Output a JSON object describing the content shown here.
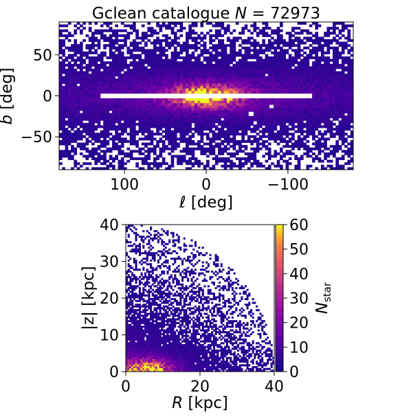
{
  "figure": {
    "title_prefix": "Gclean catalogue ",
    "title_n_symbol": "N",
    "title_n_value": " = 72973"
  },
  "chart_data": [
    {
      "type": "heatmap",
      "title": "Gclean catalogue N = 72973",
      "xlabel_symbol": "ℓ",
      "xlabel_unit": " [deg]",
      "ylabel_symbol": "b",
      "ylabel_unit": " [deg]",
      "xlim": [
        180,
        -180
      ],
      "ylim": [
        -90,
        90
      ],
      "x_reversed": true,
      "xticks": [
        100,
        0,
        -100
      ],
      "xtick_labels": [
        "100",
        "0",
        "−100"
      ],
      "yticks": [
        50,
        0,
        -50
      ],
      "ytick_labels": [
        "50",
        "0",
        "−50"
      ],
      "description": "2D histogram of star counts in Galactic longitude/latitude; dense bulge near l=0,b=0 with empty band along b≈0"
    },
    {
      "type": "heatmap",
      "xlabel_symbol": "R",
      "xlabel_unit": " [kpc]",
      "ylabel": "|z| [kpc]",
      "xlim": [
        0,
        40
      ],
      "ylim": [
        0,
        40
      ],
      "xticks": [
        0,
        20,
        40
      ],
      "xtick_labels": [
        "0",
        "20",
        "40"
      ],
      "yticks": [
        0,
        10,
        20,
        30,
        40
      ],
      "ytick_labels": [
        "0",
        "10",
        "20",
        "30",
        "40"
      ],
      "colorbar": {
        "label_symbol": "N",
        "label_sub": "star",
        "range": [
          0,
          60
        ],
        "ticks": [
          0,
          10,
          20,
          30,
          40,
          50,
          60
        ],
        "tick_labels": [
          "0",
          "10",
          "20",
          "30",
          "40",
          "50",
          "60"
        ],
        "colormap": "plasma"
      }
    }
  ]
}
